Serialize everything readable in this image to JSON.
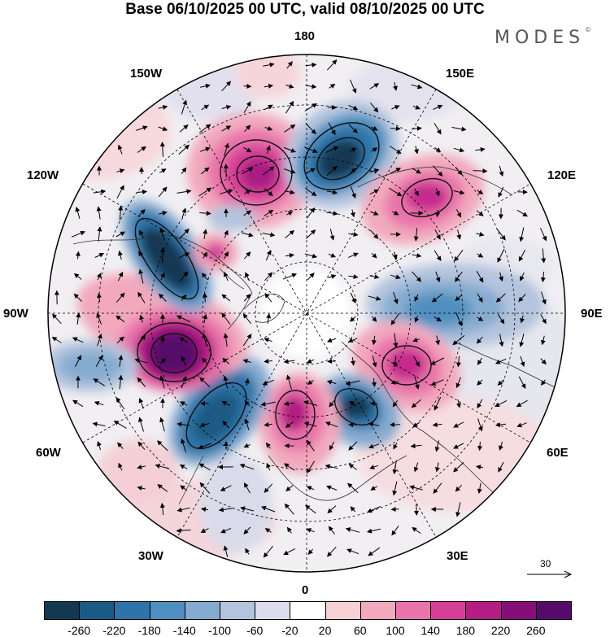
{
  "title": "Base 06/10/2025 00 UTC, valid 08/10/2025 00 UTC",
  "brand": "MODES",
  "brand_mark": "©",
  "longitude_labels": {
    "lon_180": "180",
    "lon_150w": "150W",
    "lon_150e": "150E",
    "lon_120w": "120W",
    "lon_120e": "120E",
    "lon_90w": "90W",
    "lon_90e": "90E",
    "lon_60w": "60W",
    "lon_60e": "60E",
    "lon_30w": "30W",
    "lon_30e": "30E",
    "lon_0": "0"
  },
  "reference_vector": {
    "label": "30"
  },
  "colorbar": {
    "ticks": [
      "-260",
      "-220",
      "-180",
      "-140",
      "-100",
      "-60",
      "-20",
      "20",
      "60",
      "100",
      "140",
      "180",
      "220",
      "260"
    ],
    "colors": [
      "#123852",
      "#1a5a84",
      "#2f74a8",
      "#4f8fbf",
      "#86abd0",
      "#b4c4de",
      "#dcdced",
      "#ffffff",
      "#f7d0d5",
      "#f2a9bd",
      "#e874aa",
      "#d63f96",
      "#b41d82",
      "#860e78",
      "#560b6b"
    ]
  }
}
